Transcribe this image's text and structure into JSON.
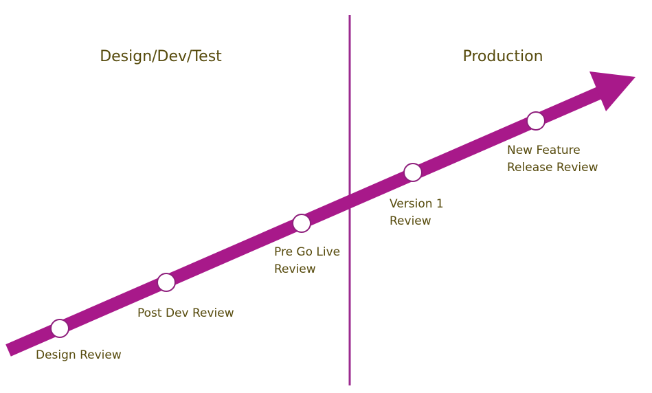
{
  "sections": [
    {
      "title": "Design/Dev/Test"
    },
    {
      "title": "Production"
    }
  ],
  "milestones": [
    {
      "lines": [
        "Design Review"
      ]
    },
    {
      "lines": [
        "Post Dev Review"
      ]
    },
    {
      "lines": [
        "Pre Go Live",
        "Review"
      ]
    },
    {
      "lines": [
        "Version 1",
        "Review"
      ]
    },
    {
      "lines": [
        "New Feature",
        "Release Review"
      ]
    }
  ]
}
